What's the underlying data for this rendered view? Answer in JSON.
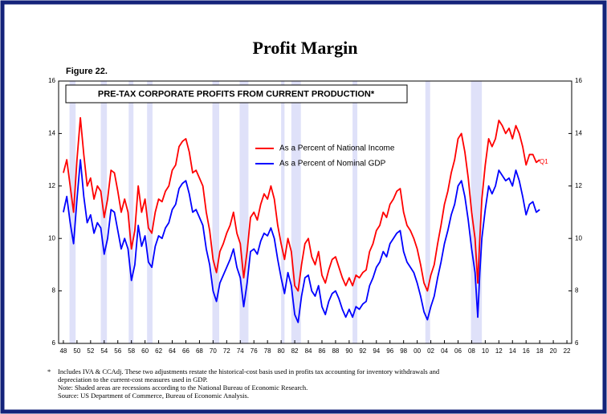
{
  "chart_data": {
    "type": "line",
    "title": "Profit Margin",
    "figure": "Figure 22.",
    "subtitle": "PRE-TAX CORPORATE PROFITS FROM CURRENT PRODUCTION*",
    "annotation": "Q1",
    "footnote_marker": "*",
    "notes": [
      "Includes IVA & CCAdj. These two adjustments restate the historical-cost basis used in profits tax accounting for inventory withdrawals and",
      "depreciation to the current-cost measures used in GDP.",
      "Note: Shaded areas are recessions according to the National Bureau of Economic Research.",
      "Source: US Department of Commerce, Bureau of Economic Analysis."
    ],
    "xlim": [
      1947.3,
      2022.7
    ],
    "xticks": [
      {
        "value": 1948,
        "label": "48"
      },
      {
        "value": 1950,
        "label": "50"
      },
      {
        "value": 1952,
        "label": "52"
      },
      {
        "value": 1954,
        "label": "54"
      },
      {
        "value": 1956,
        "label": "56"
      },
      {
        "value": 1958,
        "label": "58"
      },
      {
        "value": 1960,
        "label": "60"
      },
      {
        "value": 1962,
        "label": "62"
      },
      {
        "value": 1964,
        "label": "64"
      },
      {
        "value": 1966,
        "label": "66"
      },
      {
        "value": 1968,
        "label": "68"
      },
      {
        "value": 1970,
        "label": "70"
      },
      {
        "value": 1972,
        "label": "72"
      },
      {
        "value": 1974,
        "label": "74"
      },
      {
        "value": 1976,
        "label": "76"
      },
      {
        "value": 1978,
        "label": "78"
      },
      {
        "value": 1980,
        "label": "80"
      },
      {
        "value": 1982,
        "label": "82"
      },
      {
        "value": 1984,
        "label": "84"
      },
      {
        "value": 1986,
        "label": "86"
      },
      {
        "value": 1988,
        "label": "88"
      },
      {
        "value": 1990,
        "label": "90"
      },
      {
        "value": 1992,
        "label": "92"
      },
      {
        "value": 1994,
        "label": "94"
      },
      {
        "value": 1996,
        "label": "96"
      },
      {
        "value": 1998,
        "label": "98"
      },
      {
        "value": 2000,
        "label": "00"
      },
      {
        "value": 2002,
        "label": "02"
      },
      {
        "value": 2004,
        "label": "04"
      },
      {
        "value": 2006,
        "label": "06"
      },
      {
        "value": 2008,
        "label": "08"
      },
      {
        "value": 2010,
        "label": "10"
      },
      {
        "value": 2012,
        "label": "12"
      },
      {
        "value": 2014,
        "label": "14"
      },
      {
        "value": 2016,
        "label": "16"
      },
      {
        "value": 2018,
        "label": "18"
      },
      {
        "value": 2020,
        "label": "20"
      },
      {
        "value": 2022,
        "label": "22"
      }
    ],
    "ylim": [
      6,
      16
    ],
    "yticks": [
      6,
      8,
      10,
      12,
      14,
      16
    ],
    "y2lim": [
      6,
      16
    ],
    "y2ticks": [
      6,
      8,
      10,
      12,
      14,
      16
    ],
    "recession_color": "#dfe1f9",
    "recessions": [
      [
        1948.9,
        1949.8
      ],
      [
        1953.5,
        1954.4
      ],
      [
        1957.6,
        1958.3
      ],
      [
        1960.3,
        1961.1
      ],
      [
        1969.9,
        1970.9
      ],
      [
        1973.9,
        1975.2
      ],
      [
        1980.0,
        1980.5
      ],
      [
        1981.5,
        1982.9
      ],
      [
        1990.5,
        1991.2
      ],
      [
        2001.2,
        2001.9
      ],
      [
        2007.9,
        2009.5
      ]
    ],
    "x": [
      1948,
      1948.5,
      1949,
      1949.5,
      1950,
      1950.5,
      1951,
      1951.5,
      1952,
      1952.5,
      1953,
      1953.5,
      1954,
      1954.5,
      1955,
      1955.5,
      1956,
      1956.5,
      1957,
      1957.5,
      1958,
      1958.5,
      1959,
      1959.5,
      1960,
      1960.5,
      1961,
      1961.5,
      1962,
      1962.5,
      1963,
      1963.5,
      1964,
      1964.5,
      1965,
      1965.5,
      1966,
      1966.5,
      1967,
      1967.5,
      1968,
      1968.5,
      1969,
      1969.5,
      1970,
      1970.5,
      1971,
      1971.5,
      1972,
      1972.5,
      1973,
      1973.5,
      1974,
      1974.5,
      1975,
      1975.5,
      1976,
      1976.5,
      1977,
      1977.5,
      1978,
      1978.5,
      1979,
      1979.5,
      1980,
      1980.5,
      1981,
      1981.5,
      1982,
      1982.5,
      1983,
      1983.5,
      1984,
      1984.5,
      1985,
      1985.5,
      1986,
      1986.5,
      1987,
      1987.5,
      1988,
      1988.5,
      1989,
      1989.5,
      1990,
      1990.5,
      1991,
      1991.5,
      1992,
      1992.5,
      1993,
      1993.5,
      1994,
      1994.5,
      1995,
      1995.5,
      1996,
      1996.5,
      1997,
      1997.5,
      1998,
      1998.5,
      1999,
      1999.5,
      2000,
      2000.5,
      2001,
      2001.5,
      2002,
      2002.5,
      2003,
      2003.5,
      2004,
      2004.5,
      2005,
      2005.5,
      2006,
      2006.5,
      2007,
      2007.5,
      2008,
      2008.5,
      2008.9,
      2009.2,
      2009.5,
      2010,
      2010.5,
      2011,
      2011.5,
      2012,
      2012.5,
      2013,
      2013.5,
      2014,
      2014.5,
      2015,
      2015.5,
      2016,
      2016.5,
      2017,
      2017.5,
      2018
    ],
    "series": [
      {
        "name": "As a Percent of National Income",
        "color": "#ff0000",
        "values": [
          12.5,
          13.0,
          12.0,
          11.0,
          13.0,
          14.6,
          13.2,
          12.0,
          12.3,
          11.5,
          12.0,
          11.8,
          10.8,
          11.5,
          12.6,
          12.5,
          11.8,
          11.0,
          11.5,
          11.0,
          9.6,
          10.3,
          12.0,
          11.0,
          11.5,
          10.4,
          10.2,
          11.0,
          11.5,
          11.4,
          11.8,
          12.0,
          12.6,
          12.8,
          13.5,
          13.7,
          13.8,
          13.3,
          12.5,
          12.6,
          12.3,
          12.0,
          11.0,
          10.3,
          9.2,
          8.7,
          9.5,
          9.8,
          10.2,
          10.5,
          11.0,
          10.2,
          9.8,
          8.5,
          9.5,
          10.8,
          11.0,
          10.7,
          11.3,
          11.7,
          11.5,
          12.0,
          11.5,
          10.5,
          9.8,
          9.2,
          10.0,
          9.5,
          8.2,
          8.0,
          9.0,
          9.8,
          10.0,
          9.3,
          9.0,
          9.5,
          8.6,
          8.3,
          8.8,
          9.2,
          9.3,
          8.9,
          8.5,
          8.2,
          8.5,
          8.2,
          8.6,
          8.5,
          8.7,
          8.8,
          9.5,
          9.8,
          10.3,
          10.5,
          11.0,
          10.8,
          11.3,
          11.5,
          11.8,
          11.9,
          11.0,
          10.5,
          10.3,
          10.0,
          9.6,
          9.0,
          8.3,
          8.0,
          8.6,
          9.0,
          9.8,
          10.5,
          11.3,
          11.8,
          12.5,
          13.0,
          13.8,
          14.0,
          13.3,
          12.3,
          11.0,
          10.0,
          8.3,
          10.0,
          11.5,
          12.8,
          13.8,
          13.5,
          13.8,
          14.5,
          14.3,
          14.0,
          14.2,
          13.8,
          14.3,
          14.0,
          13.5,
          12.8,
          13.2,
          13.2,
          12.9,
          13.0
        ]
      },
      {
        "name": "As a Percent of Nominal GDP",
        "color": "#0000ff",
        "values": [
          11.0,
          11.6,
          10.6,
          9.8,
          11.5,
          13.0,
          11.6,
          10.6,
          10.9,
          10.2,
          10.6,
          10.4,
          9.4,
          10.0,
          11.1,
          11.0,
          10.3,
          9.6,
          10.0,
          9.6,
          8.4,
          9.0,
          10.5,
          9.7,
          10.1,
          9.1,
          8.9,
          9.7,
          10.1,
          10.0,
          10.4,
          10.6,
          11.1,
          11.3,
          11.9,
          12.1,
          12.2,
          11.7,
          11.0,
          11.1,
          10.8,
          10.5,
          9.6,
          9.0,
          8.0,
          7.6,
          8.3,
          8.6,
          8.9,
          9.2,
          9.6,
          8.9,
          8.5,
          7.4,
          8.3,
          9.5,
          9.6,
          9.4,
          9.9,
          10.2,
          10.1,
          10.4,
          10.0,
          9.2,
          8.5,
          7.9,
          8.7,
          8.2,
          7.1,
          6.8,
          7.8,
          8.5,
          8.6,
          8.0,
          7.8,
          8.2,
          7.4,
          7.1,
          7.6,
          7.9,
          8.0,
          7.7,
          7.3,
          7.0,
          7.3,
          7.0,
          7.4,
          7.3,
          7.5,
          7.6,
          8.2,
          8.5,
          8.9,
          9.1,
          9.5,
          9.3,
          9.8,
          10.0,
          10.2,
          10.3,
          9.5,
          9.1,
          8.9,
          8.7,
          8.3,
          7.8,
          7.2,
          6.9,
          7.4,
          7.8,
          8.5,
          9.1,
          9.8,
          10.3,
          10.9,
          11.3,
          12.0,
          12.2,
          11.6,
          10.7,
          9.6,
          8.7,
          7.0,
          8.7,
          10.0,
          11.1,
          12.0,
          11.7,
          12.0,
          12.6,
          12.4,
          12.2,
          12.3,
          12.0,
          12.6,
          12.2,
          11.6,
          10.9,
          11.3,
          11.4,
          11.0,
          11.1
        ]
      }
    ]
  }
}
